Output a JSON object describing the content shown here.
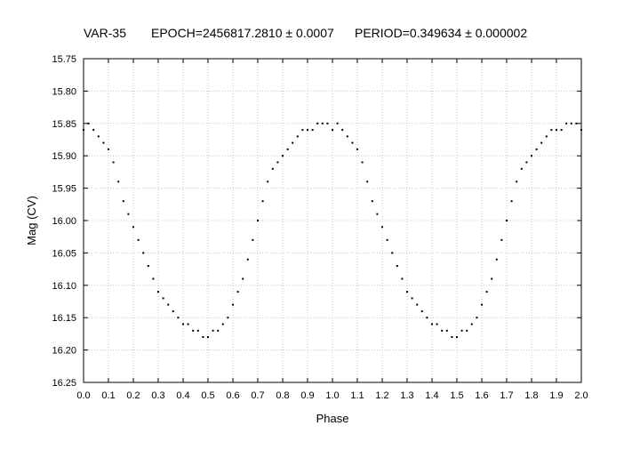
{
  "title": {
    "star": "VAR-35",
    "epoch": "EPOCH=2456817.2810 ± 0.0007",
    "period": "PERIOD=0.349634 ± 0.000002"
  },
  "chart_data": {
    "type": "scatter",
    "xlabel": "Phase",
    "ylabel": "Mag (CV)",
    "xlim": [
      0.0,
      2.0
    ],
    "ylim": [
      15.75,
      16.25
    ],
    "y_inverted": true,
    "grid": true,
    "grid_style": "dotted",
    "x_ticks": [
      "0.0",
      "0.1",
      "0.2",
      "0.3",
      "0.4",
      "0.5",
      "0.6",
      "0.7",
      "0.8",
      "0.9",
      "1.0",
      "1.1",
      "1.2",
      "1.3",
      "1.4",
      "1.5",
      "1.6",
      "1.7",
      "1.8",
      "1.9",
      "2.0"
    ],
    "y_ticks": [
      "15.75",
      "15.80",
      "15.85",
      "15.90",
      "15.95",
      "16.00",
      "16.05",
      "16.10",
      "16.15",
      "16.20",
      "16.25"
    ],
    "point_color": "#000000",
    "series": [
      {
        "x": [
          0.0,
          0.02,
          0.04,
          0.06,
          0.08,
          0.1,
          0.12,
          0.14,
          0.16,
          0.18,
          0.2,
          0.22,
          0.24,
          0.26,
          0.28,
          0.3,
          0.32,
          0.34,
          0.36,
          0.38,
          0.4,
          0.42,
          0.44,
          0.46,
          0.48,
          0.5,
          0.52,
          0.54,
          0.56,
          0.58,
          0.6,
          0.62,
          0.64,
          0.66,
          0.68,
          0.7,
          0.72,
          0.74,
          0.76,
          0.78,
          0.8,
          0.82,
          0.84,
          0.86,
          0.88,
          0.9,
          0.92,
          0.94,
          0.96,
          0.98,
          1.0,
          1.02,
          1.04,
          1.06,
          1.08,
          1.1,
          1.12,
          1.14,
          1.16,
          1.18,
          1.2,
          1.22,
          1.24,
          1.26,
          1.28,
          1.3,
          1.32,
          1.34,
          1.36,
          1.38,
          1.4,
          1.42,
          1.44,
          1.46,
          1.48,
          1.5,
          1.52,
          1.54,
          1.56,
          1.58,
          1.6,
          1.62,
          1.64,
          1.66,
          1.68,
          1.7,
          1.72,
          1.74,
          1.76,
          1.78,
          1.8,
          1.82,
          1.84,
          1.86,
          1.88,
          1.9,
          1.92,
          1.94,
          1.96,
          1.98,
          2.0
        ],
        "y": [
          15.86,
          15.85,
          15.86,
          15.87,
          15.88,
          15.89,
          15.91,
          15.94,
          15.97,
          15.99,
          16.01,
          16.03,
          16.05,
          16.07,
          16.09,
          16.11,
          16.12,
          16.13,
          16.14,
          16.15,
          16.16,
          16.16,
          16.17,
          16.17,
          16.18,
          16.18,
          16.17,
          16.17,
          16.16,
          16.15,
          16.13,
          16.11,
          16.09,
          16.06,
          16.03,
          16.0,
          15.97,
          15.94,
          15.92,
          15.91,
          15.9,
          15.89,
          15.88,
          15.87,
          15.86,
          15.86,
          15.86,
          15.85,
          15.85,
          15.85,
          15.86,
          15.85,
          15.86,
          15.87,
          15.88,
          15.89,
          15.91,
          15.94,
          15.97,
          15.99,
          16.01,
          16.03,
          16.05,
          16.07,
          16.09,
          16.11,
          16.12,
          16.13,
          16.14,
          16.15,
          16.16,
          16.16,
          16.17,
          16.17,
          16.18,
          16.18,
          16.17,
          16.17,
          16.16,
          16.15,
          16.13,
          16.11,
          16.09,
          16.06,
          16.03,
          16.0,
          15.97,
          15.94,
          15.92,
          15.91,
          15.9,
          15.89,
          15.88,
          15.87,
          15.86,
          15.86,
          15.86,
          15.85,
          15.85,
          15.85,
          15.86
        ]
      }
    ]
  }
}
